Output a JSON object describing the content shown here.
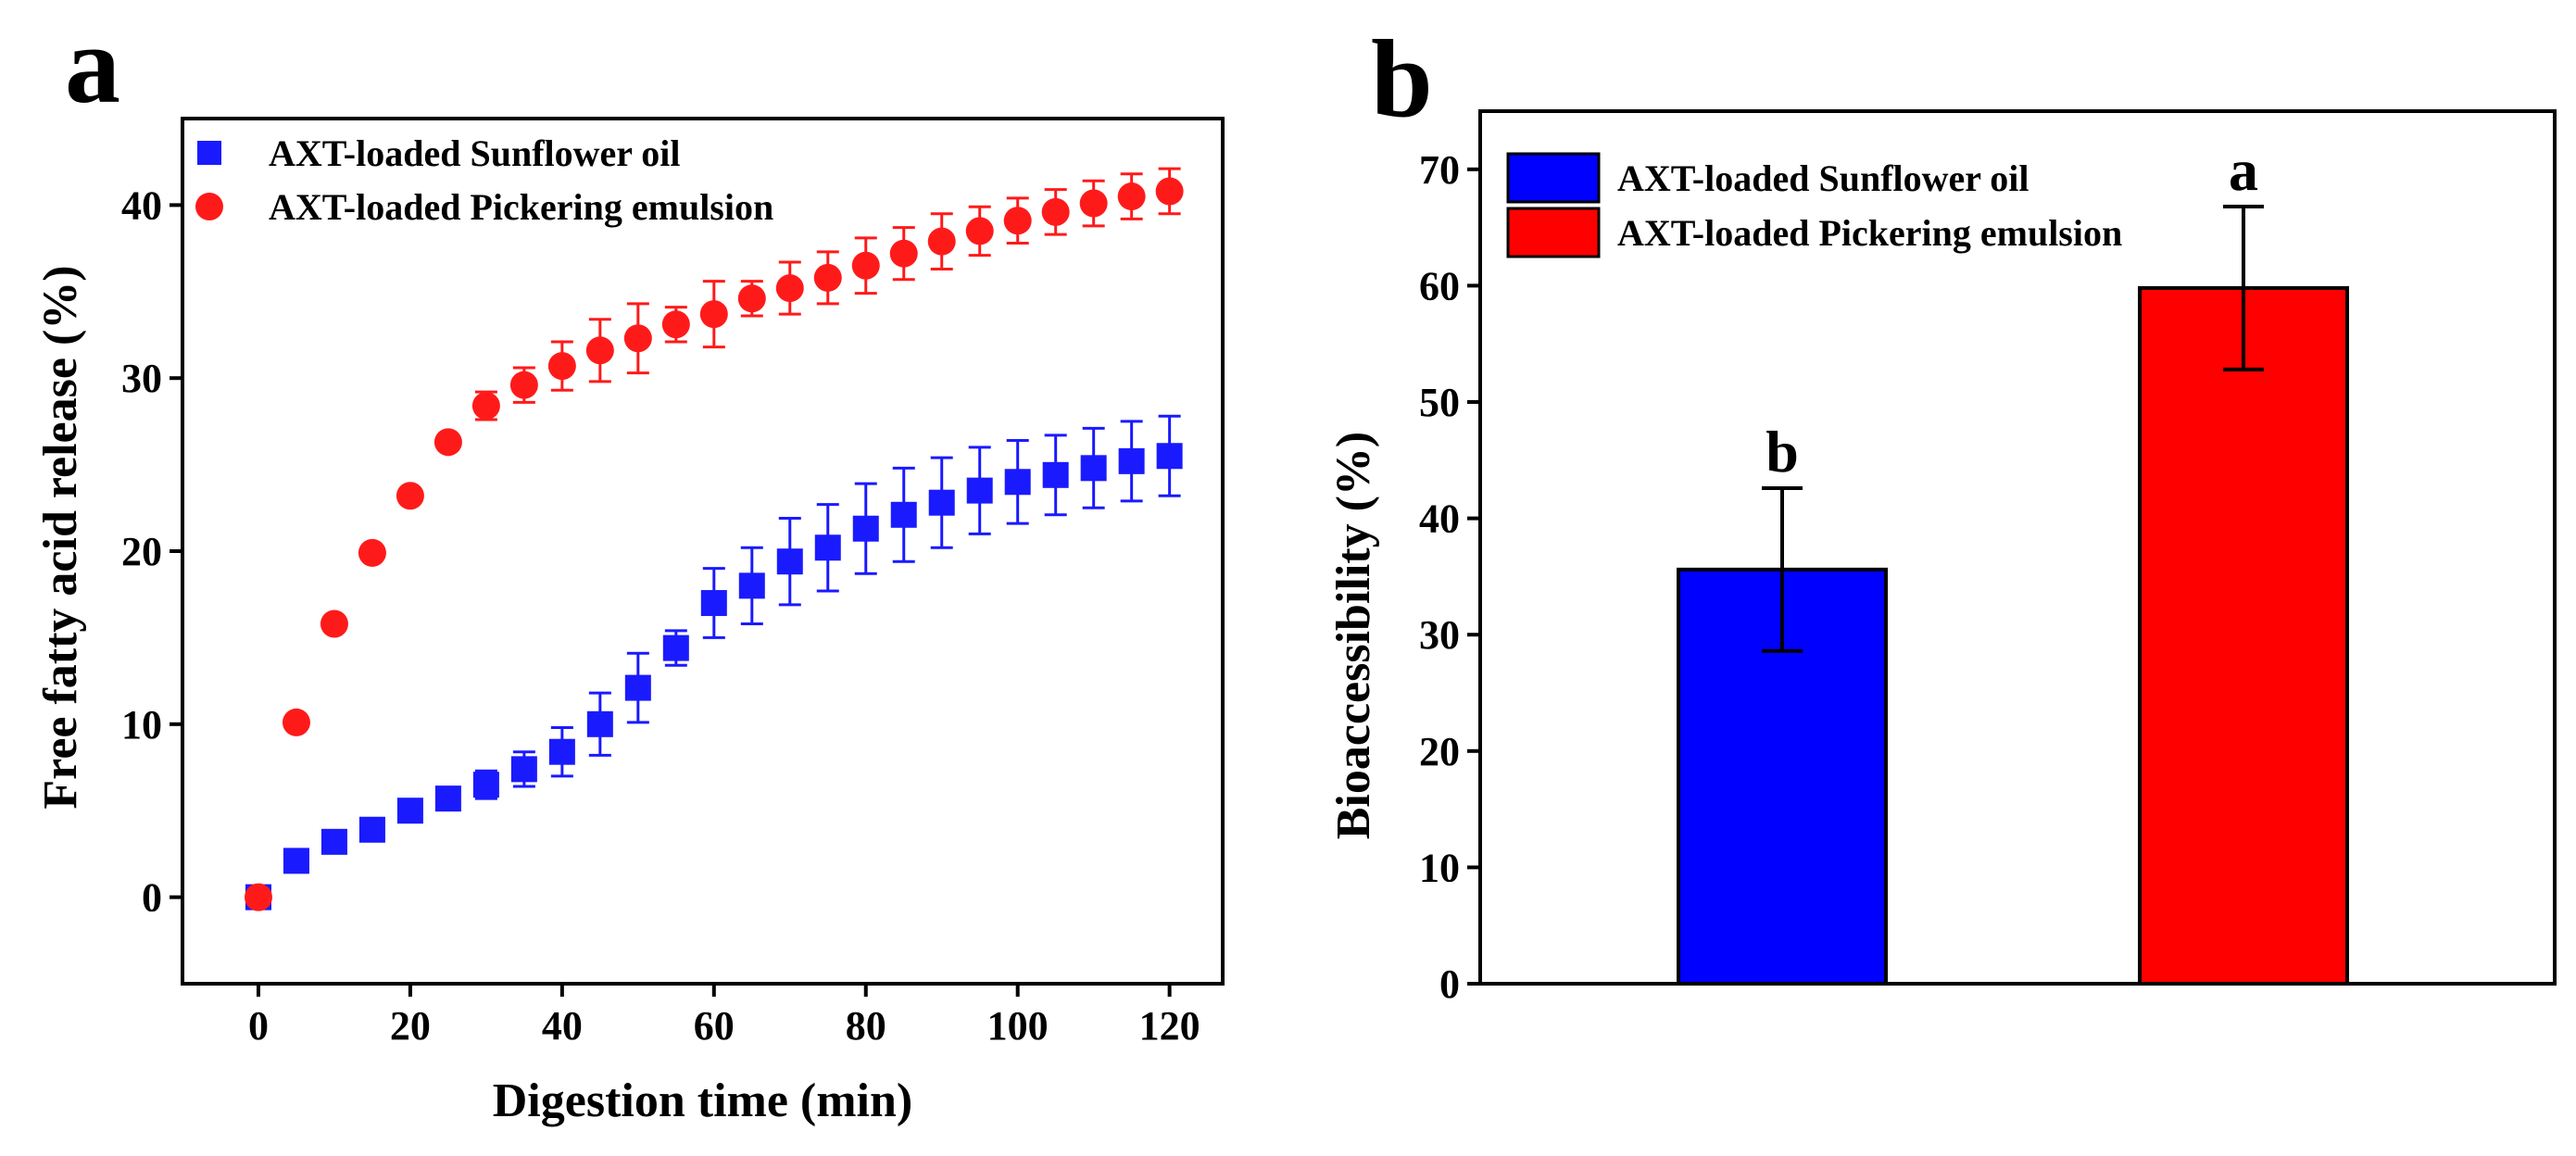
{
  "chart_data": [
    {
      "panel_label": "a",
      "type": "scatter",
      "xlabel": "Digestion time (min)",
      "ylabel": "Free fatty acid release (%)",
      "xlim": [
        -10,
        127
      ],
      "ylim": [
        -5,
        45
      ],
      "x_ticks": [
        0,
        20,
        40,
        60,
        80,
        100,
        120
      ],
      "x_tick_labels": [
        "0",
        "20",
        "40",
        "60",
        "80",
        "100",
        "120"
      ],
      "y_ticks": [
        0,
        10,
        20,
        30,
        40
      ],
      "y_tick_labels": [
        "0",
        "10",
        "20",
        "30",
        "40"
      ],
      "legend_position": "top-left",
      "grid": false,
      "x": [
        0,
        5,
        10,
        15,
        20,
        25,
        30,
        35,
        40,
        45,
        50,
        55,
        60,
        65,
        70,
        75,
        80,
        85,
        90,
        95,
        100,
        105,
        110,
        115,
        120
      ],
      "series": [
        {
          "name": "AXT-loaded Sunflower oil",
          "marker": "square",
          "color": "#1a1aff",
          "values": [
            0,
            2.1,
            3.2,
            3.9,
            5.0,
            5.7,
            6.5,
            7.4,
            8.4,
            10.0,
            12.1,
            14.4,
            17.0,
            18.0,
            19.4,
            20.2,
            21.3,
            22.1,
            22.8,
            23.5,
            24.0,
            24.4,
            24.8,
            25.2,
            25.5
          ],
          "errors": [
            0,
            0.5,
            0.5,
            0.5,
            0.6,
            0.6,
            0.8,
            1.0,
            1.4,
            1.8,
            2.0,
            1.0,
            2.0,
            2.2,
            2.5,
            2.5,
            2.6,
            2.7,
            2.6,
            2.5,
            2.4,
            2.3,
            2.3,
            2.3,
            2.3
          ]
        },
        {
          "name": "AXT-loaded Pickering emulsion",
          "marker": "circle",
          "color": "#ff1a1a",
          "values": [
            0,
            10.1,
            15.8,
            19.9,
            23.2,
            26.3,
            28.4,
            29.6,
            30.7,
            31.6,
            32.3,
            33.1,
            33.7,
            34.6,
            35.2,
            35.8,
            36.5,
            37.2,
            37.9,
            38.5,
            39.1,
            39.6,
            40.1,
            40.5,
            40.8
          ],
          "errors": [
            0,
            0,
            0,
            0,
            0,
            0,
            0.8,
            1.0,
            1.4,
            1.8,
            2.0,
            1.0,
            1.9,
            1.0,
            1.5,
            1.5,
            1.6,
            1.5,
            1.6,
            1.4,
            1.3,
            1.3,
            1.3,
            1.3,
            1.3
          ]
        }
      ]
    },
    {
      "panel_label": "b",
      "type": "bar",
      "xlabel": "",
      "ylabel": "Bioaccessibility (%)",
      "ylim": [
        0,
        75
      ],
      "y_ticks": [
        0,
        10,
        20,
        30,
        40,
        50,
        60,
        70
      ],
      "y_tick_labels": [
        "0",
        "10",
        "20",
        "30",
        "40",
        "50",
        "60",
        "70"
      ],
      "legend_position": "top-left",
      "grid": false,
      "categories": [
        "AXT-loaded Sunflower oil",
        "AXT-loaded Pickering emulsion"
      ],
      "values": [
        35.6,
        59.8
      ],
      "errors": [
        7.0,
        7.0
      ],
      "colors": [
        "#0000ff",
        "#ff0000"
      ],
      "significance_letters": [
        "b",
        "a"
      ]
    }
  ]
}
